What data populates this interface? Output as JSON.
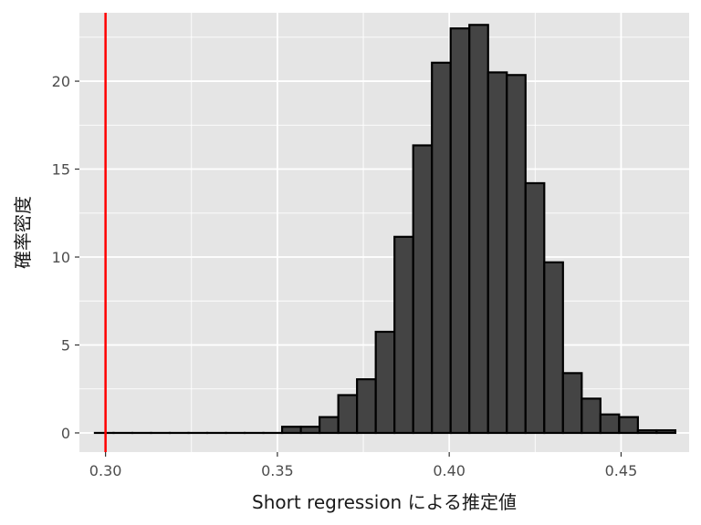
{
  "chart_data": {
    "type": "histogram",
    "title": "",
    "xlabel": "Short regression による推定値",
    "ylabel": "確率密度",
    "x_ticks": [
      "0.30",
      "0.35",
      "0.40",
      "0.45"
    ],
    "y_ticks": [
      "0",
      "5",
      "10",
      "15",
      "20"
    ],
    "xlim": [
      0.2924,
      0.4698
    ],
    "ylim": [
      -1.09,
      23.89
    ],
    "grid": true,
    "reference_line": {
      "x": 0.3,
      "color": "#ff0000"
    },
    "bar_fill": "#444444",
    "bar_outline": "#000000",
    "panel_background": "#e5e5e5",
    "grid_color": "#ffffff",
    "bins": {
      "start": 0.2969,
      "width": 0.005448,
      "densities": [
        0.0,
        0.0,
        0.0,
        0.0,
        0.0,
        0.0,
        0.0,
        0.0,
        0.0,
        0.0,
        0.35,
        0.35,
        0.9,
        2.15,
        3.05,
        5.75,
        11.15,
        16.35,
        21.05,
        23.0,
        23.2,
        20.5,
        20.35,
        14.2,
        9.7,
        3.4,
        1.95,
        1.05,
        0.9,
        0.15,
        0.15
      ]
    }
  }
}
